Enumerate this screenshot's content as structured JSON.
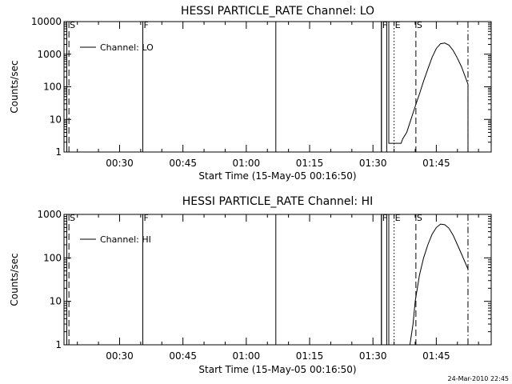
{
  "footer": {
    "date_stamp": "24-Mar-2010 22:45"
  },
  "chart_data": [
    {
      "type": "line",
      "title": "HESSI PARTICLE_RATE Channel: LO",
      "xlabel": "Start Time (15-May-05 00:16:50)",
      "ylabel": "Counts/sec",
      "y_scale": "log",
      "ylim": [
        1,
        10000
      ],
      "y_ticks": [
        1,
        10,
        100,
        1000,
        10000
      ],
      "y_tick_labels": [
        "1",
        "10",
        "100",
        "1000",
        "10000"
      ],
      "xlim": [
        "00:16:50",
        "01:58:00"
      ],
      "x_ticks": [
        "00:30",
        "00:45",
        "01:00",
        "01:15",
        "01:30",
        "01:45"
      ],
      "grid": false,
      "legend": {
        "position": "top-left",
        "entries": [
          "Channel: LO"
        ]
      },
      "series": [
        {
          "name": "Channel: LO",
          "x": [
            "00:17:30",
            "00:17:30",
            "00:35:30",
            "00:35:30",
            "01:07:00",
            "01:07:00",
            "01:32:00",
            "01:32:00",
            "01:33:15",
            "01:33:15",
            "01:33:45",
            "01:33:45",
            "01:36:40",
            "01:37:00",
            "01:38:00",
            "01:39:00",
            "01:40:00",
            "01:41:00",
            "01:42:00",
            "01:43:00",
            "01:44:00",
            "01:45:00",
            "01:46:00",
            "01:47:00",
            "01:48:00",
            "01:49:00",
            "01:50:00",
            "01:51:00",
            "01:52:30",
            "01:52:30"
          ],
          "y": [
            1,
            10000,
            10000,
            1,
            1,
            10000,
            10000,
            1,
            1,
            10000,
            10000,
            1.85,
            1.85,
            2.5,
            4,
            10,
            25,
            60,
            150,
            350,
            800,
            1500,
            2100,
            2200,
            1900,
            1300,
            750,
            400,
            120,
            1
          ]
        }
      ],
      "markers": [
        {
          "label": "S",
          "x": "00:18:00",
          "style": "dashed"
        },
        {
          "label": "F",
          "x": "00:35:30",
          "style": "solid"
        },
        {
          "label": "F",
          "x": "01:32:00",
          "style": "solid"
        },
        {
          "label": "E",
          "x": "01:35:00",
          "style": "dotted"
        },
        {
          "label": "S",
          "x": "01:40:10",
          "style": "dashed"
        },
        {
          "label": "",
          "x": "01:52:30",
          "style": "dash-dot"
        }
      ]
    },
    {
      "type": "line",
      "title": "HESSI PARTICLE_RATE Channel: HI",
      "xlabel": "Start Time (15-May-05 00:16:50)",
      "ylabel": "Counts/sec",
      "y_scale": "log",
      "ylim": [
        1,
        1000
      ],
      "y_ticks": [
        1,
        10,
        100,
        1000
      ],
      "y_tick_labels": [
        "1",
        "10",
        "100",
        "1000"
      ],
      "xlim": [
        "00:16:50",
        "01:58:00"
      ],
      "x_ticks": [
        "00:30",
        "00:45",
        "01:00",
        "01:15",
        "01:30",
        "01:45"
      ],
      "grid": false,
      "legend": {
        "position": "top-left",
        "entries": [
          "Channel: HI"
        ]
      },
      "series": [
        {
          "name": "Channel: HI",
          "x": [
            "00:17:30",
            "00:17:30",
            "00:35:30",
            "00:35:30",
            "01:07:00",
            "01:07:00",
            "01:32:00",
            "01:32:00",
            "01:33:15",
            "01:33:15",
            "01:33:45",
            "01:33:45",
            "01:38:45",
            "01:39:30",
            "01:40:00",
            "01:41:00",
            "01:42:00",
            "01:43:00",
            "01:44:00",
            "01:45:00",
            "01:46:00",
            "01:47:00",
            "01:48:00",
            "01:49:00",
            "01:50:00",
            "01:51:00",
            "01:52:30"
          ],
          "y": [
            1,
            1000,
            1000,
            1,
            1,
            1000,
            1000,
            1,
            1,
            1000,
            1000,
            1,
            1,
            3,
            10,
            40,
            100,
            200,
            350,
            500,
            600,
            580,
            480,
            330,
            200,
            120,
            55
          ]
        }
      ],
      "markers": [
        {
          "label": "S",
          "x": "00:18:00",
          "style": "dashed"
        },
        {
          "label": "F",
          "x": "00:35:30",
          "style": "solid"
        },
        {
          "label": "F",
          "x": "01:32:00",
          "style": "solid"
        },
        {
          "label": "E",
          "x": "01:35:00",
          "style": "dotted"
        },
        {
          "label": "S",
          "x": "01:40:10",
          "style": "dashed"
        },
        {
          "label": "",
          "x": "01:52:30",
          "style": "dash-dot"
        }
      ]
    }
  ]
}
